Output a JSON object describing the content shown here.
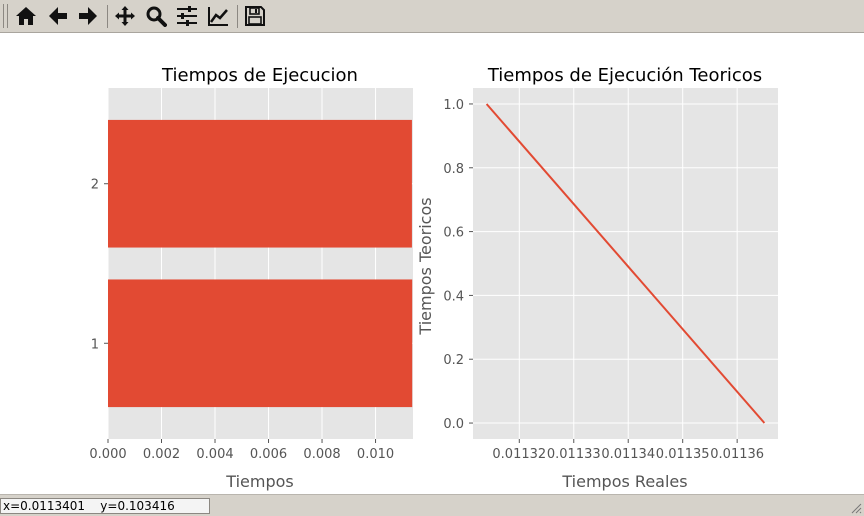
{
  "toolbar": {
    "buttons": [
      {
        "name": "home-button",
        "icon": "home-icon"
      },
      {
        "name": "back-button",
        "icon": "arrow-left-icon"
      },
      {
        "name": "forward-button",
        "icon": "arrow-right-icon"
      },
      {
        "name": "pan-button",
        "icon": "move-icon"
      },
      {
        "name": "zoom-button",
        "icon": "magnifier-icon"
      },
      {
        "name": "subplots-button",
        "icon": "sliders-icon"
      },
      {
        "name": "edit-axes-button",
        "icon": "line-chart-icon"
      },
      {
        "name": "save-button",
        "icon": "floppy-disk-icon"
      }
    ]
  },
  "status": {
    "coords": "x=0.0113401    y=0.103416"
  },
  "colors": {
    "bar": "#e24a33",
    "line": "#e24a33",
    "axes_bg": "#e5e5e5",
    "grid": "#ffffff",
    "tick_text": "#555555",
    "title_text": "#000000"
  },
  "chart_data": [
    {
      "type": "bar",
      "orientation": "horizontal",
      "title": "Tiempos de Ejecucion",
      "xlabel": "Tiempos",
      "ylabel": "",
      "categories": [
        "1",
        "2"
      ],
      "values": [
        0.01137,
        0.01136
      ],
      "xlim": [
        0,
        0.0114
      ],
      "xticks": [
        "0.000",
        "0.002",
        "0.004",
        "0.006",
        "0.008",
        "0.010"
      ],
      "grid": true
    },
    {
      "type": "line",
      "title": "Tiempos de Ejecución Teoricos",
      "xlabel": "Tiempos Reales",
      "ylabel": "Tiempos Teoricos",
      "x": [
        0.011314,
        0.011365
      ],
      "y": [
        1.0,
        0.0
      ],
      "xlim": [
        0.0113115,
        0.0113675
      ],
      "ylim": [
        -0.05,
        1.05
      ],
      "xticks": [
        "0.01132",
        "0.01133",
        "0.01134",
        "0.01135",
        "0.01136"
      ],
      "yticks": [
        "0.0",
        "0.2",
        "0.4",
        "0.6",
        "0.8",
        "1.0"
      ],
      "grid": true
    }
  ]
}
